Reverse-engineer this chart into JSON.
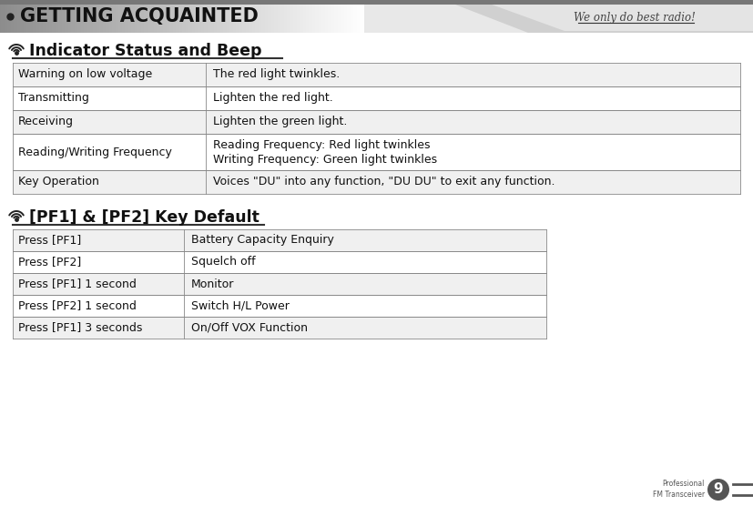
{
  "page_title": "GETTING ACQUAINTED",
  "page_number": "9",
  "tagline": "We only do best radio!",
  "product_line1": "Professional",
  "product_line2": "FM Transceiver",
  "section1_title": "Indicator Status and Beep",
  "section1_rows": [
    [
      "Warning on low voltage",
      "The red light twinkles."
    ],
    [
      "Transmitting",
      "Lighten the red light."
    ],
    [
      "Receiving",
      "Lighten the green light."
    ],
    [
      "Reading/Writing Frequency",
      "Reading Frequency: Red light twinkles\nWriting Frequency: Green light twinkles"
    ],
    [
      "Key Operation",
      "Voices \"DU\" into any function, \"DU DU\" to exit any function."
    ]
  ],
  "section2_title": "[PF1] & [PF2] Key Default",
  "section2_rows": [
    [
      "Press [PF1]",
      "Battery Capacity Enquiry"
    ],
    [
      "Press [PF2]",
      "Squelch off"
    ],
    [
      "Press [PF1] 1 second",
      "Monitor"
    ],
    [
      "Press [PF2] 1 second",
      "Switch H/L Power"
    ],
    [
      "Press [PF1] 3 seconds",
      "On/Off VOX Function"
    ]
  ],
  "bg_color": "#ffffff",
  "text_color": "#111111",
  "border_color": "#555555",
  "cell_bg_alt": "#f0f0f0",
  "header_dark": "#888888",
  "header_mid": "#bbbbbb",
  "header_light": "#e8e8e8"
}
